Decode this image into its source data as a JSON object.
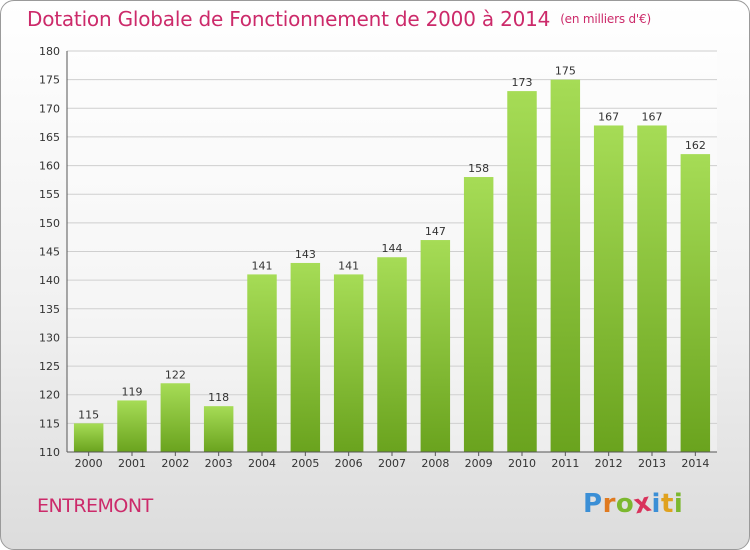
{
  "chart_data": {
    "type": "bar",
    "title": "Dotation Globale de Fonctionnement de 2000 à 2014",
    "unit_label": "(en milliers d'€)",
    "categories": [
      "2000",
      "2001",
      "2002",
      "2003",
      "2004",
      "2005",
      "2006",
      "2007",
      "2008",
      "2009",
      "2010",
      "2011",
      "2012",
      "2013",
      "2014"
    ],
    "values": [
      115,
      119,
      122,
      118,
      141,
      143,
      141,
      144,
      147,
      158,
      173,
      175,
      167,
      167,
      162
    ],
    "ylim": [
      110,
      180
    ],
    "yticks": [
      110,
      115,
      120,
      125,
      130,
      135,
      140,
      145,
      150,
      155,
      160,
      165,
      170,
      175,
      180
    ],
    "grid": true,
    "bar_color_light": "#a6dc56",
    "bar_color_dark": "#6aa31e",
    "title_color": "#cc2a6a"
  },
  "footer": {
    "place": "ENTREMONT",
    "logo_letters": [
      {
        "ch": "P",
        "color": "#3b8fd6"
      },
      {
        "ch": "r",
        "color": "#e07a1f"
      },
      {
        "ch": "o",
        "color": "#7cb82f"
      },
      {
        "ch": "x",
        "color": "#d9335c"
      },
      {
        "ch": "i",
        "color": "#3b8fd6"
      },
      {
        "ch": "t",
        "color": "#e0a21f"
      },
      {
        "ch": "i",
        "color": "#7cb82f"
      }
    ]
  }
}
